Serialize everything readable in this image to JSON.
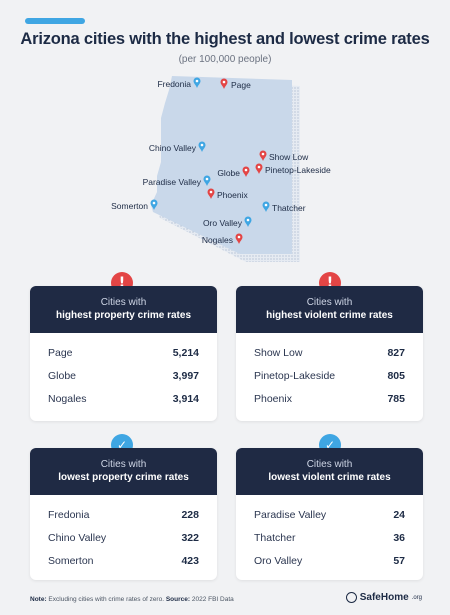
{
  "header": {
    "title": "Arizona cities with the highest and lowest crime rates",
    "subtitle": "(per 100,000 people)"
  },
  "map": {
    "cities": [
      {
        "name": "Fredonia",
        "pin": "blue"
      },
      {
        "name": "Page",
        "pin": "red"
      },
      {
        "name": "Chino Valley",
        "pin": "blue"
      },
      {
        "name": "Show Low",
        "pin": "red"
      },
      {
        "name": "Pinetop-Lakeside",
        "pin": "red"
      },
      {
        "name": "Globe",
        "pin": "red"
      },
      {
        "name": "Paradise Valley",
        "pin": "blue"
      },
      {
        "name": "Phoenix",
        "pin": "red"
      },
      {
        "name": "Somerton",
        "pin": "blue"
      },
      {
        "name": "Thatcher",
        "pin": "blue"
      },
      {
        "name": "Oro Valley",
        "pin": "blue"
      },
      {
        "name": "Nogales",
        "pin": "red"
      }
    ]
  },
  "cards": {
    "high_property": {
      "line1": "Cities with",
      "line2": "highest property crime rates",
      "rows": [
        {
          "name": "Page",
          "value": "5,214"
        },
        {
          "name": "Globe",
          "value": "3,997"
        },
        {
          "name": "Nogales",
          "value": "3,914"
        }
      ]
    },
    "high_violent": {
      "line1": "Cities with",
      "line2": "highest violent crime rates",
      "rows": [
        {
          "name": "Show Low",
          "value": "827"
        },
        {
          "name": "Pinetop-Lakeside",
          "value": "805"
        },
        {
          "name": "Phoenix",
          "value": "785"
        }
      ]
    },
    "low_property": {
      "line1": "Cities with",
      "line2": "lowest property crime rates",
      "rows": [
        {
          "name": "Fredonia",
          "value": "228"
        },
        {
          "name": "Chino Valley",
          "value": "322"
        },
        {
          "name": "Somerton",
          "value": "423"
        }
      ]
    },
    "low_violent": {
      "line1": "Cities with",
      "line2": "lowest violent crime rates",
      "rows": [
        {
          "name": "Paradise Valley",
          "value": "24"
        },
        {
          "name": "Thatcher",
          "value": "36"
        },
        {
          "name": "Oro Valley",
          "value": "57"
        }
      ]
    }
  },
  "badges": {
    "alert": "!",
    "check": "✓"
  },
  "footer": {
    "note_label": "Note:",
    "note_text": "Excluding cities with crime rates of zero.",
    "source_label": "Source:",
    "source_text": "2022 FBI Data",
    "logo_text": "SafeHome",
    "logo_suffix": ".org"
  },
  "colors": {
    "navy": "#1f2a44",
    "accent_blue": "#3fa6e3",
    "alert_red": "#e34545",
    "map_fill": "#c9d8ea",
    "background": "#f1f2f4"
  },
  "icons": [
    "map-pin-icon",
    "alert-icon",
    "check-icon",
    "safehome-logo-icon"
  ]
}
